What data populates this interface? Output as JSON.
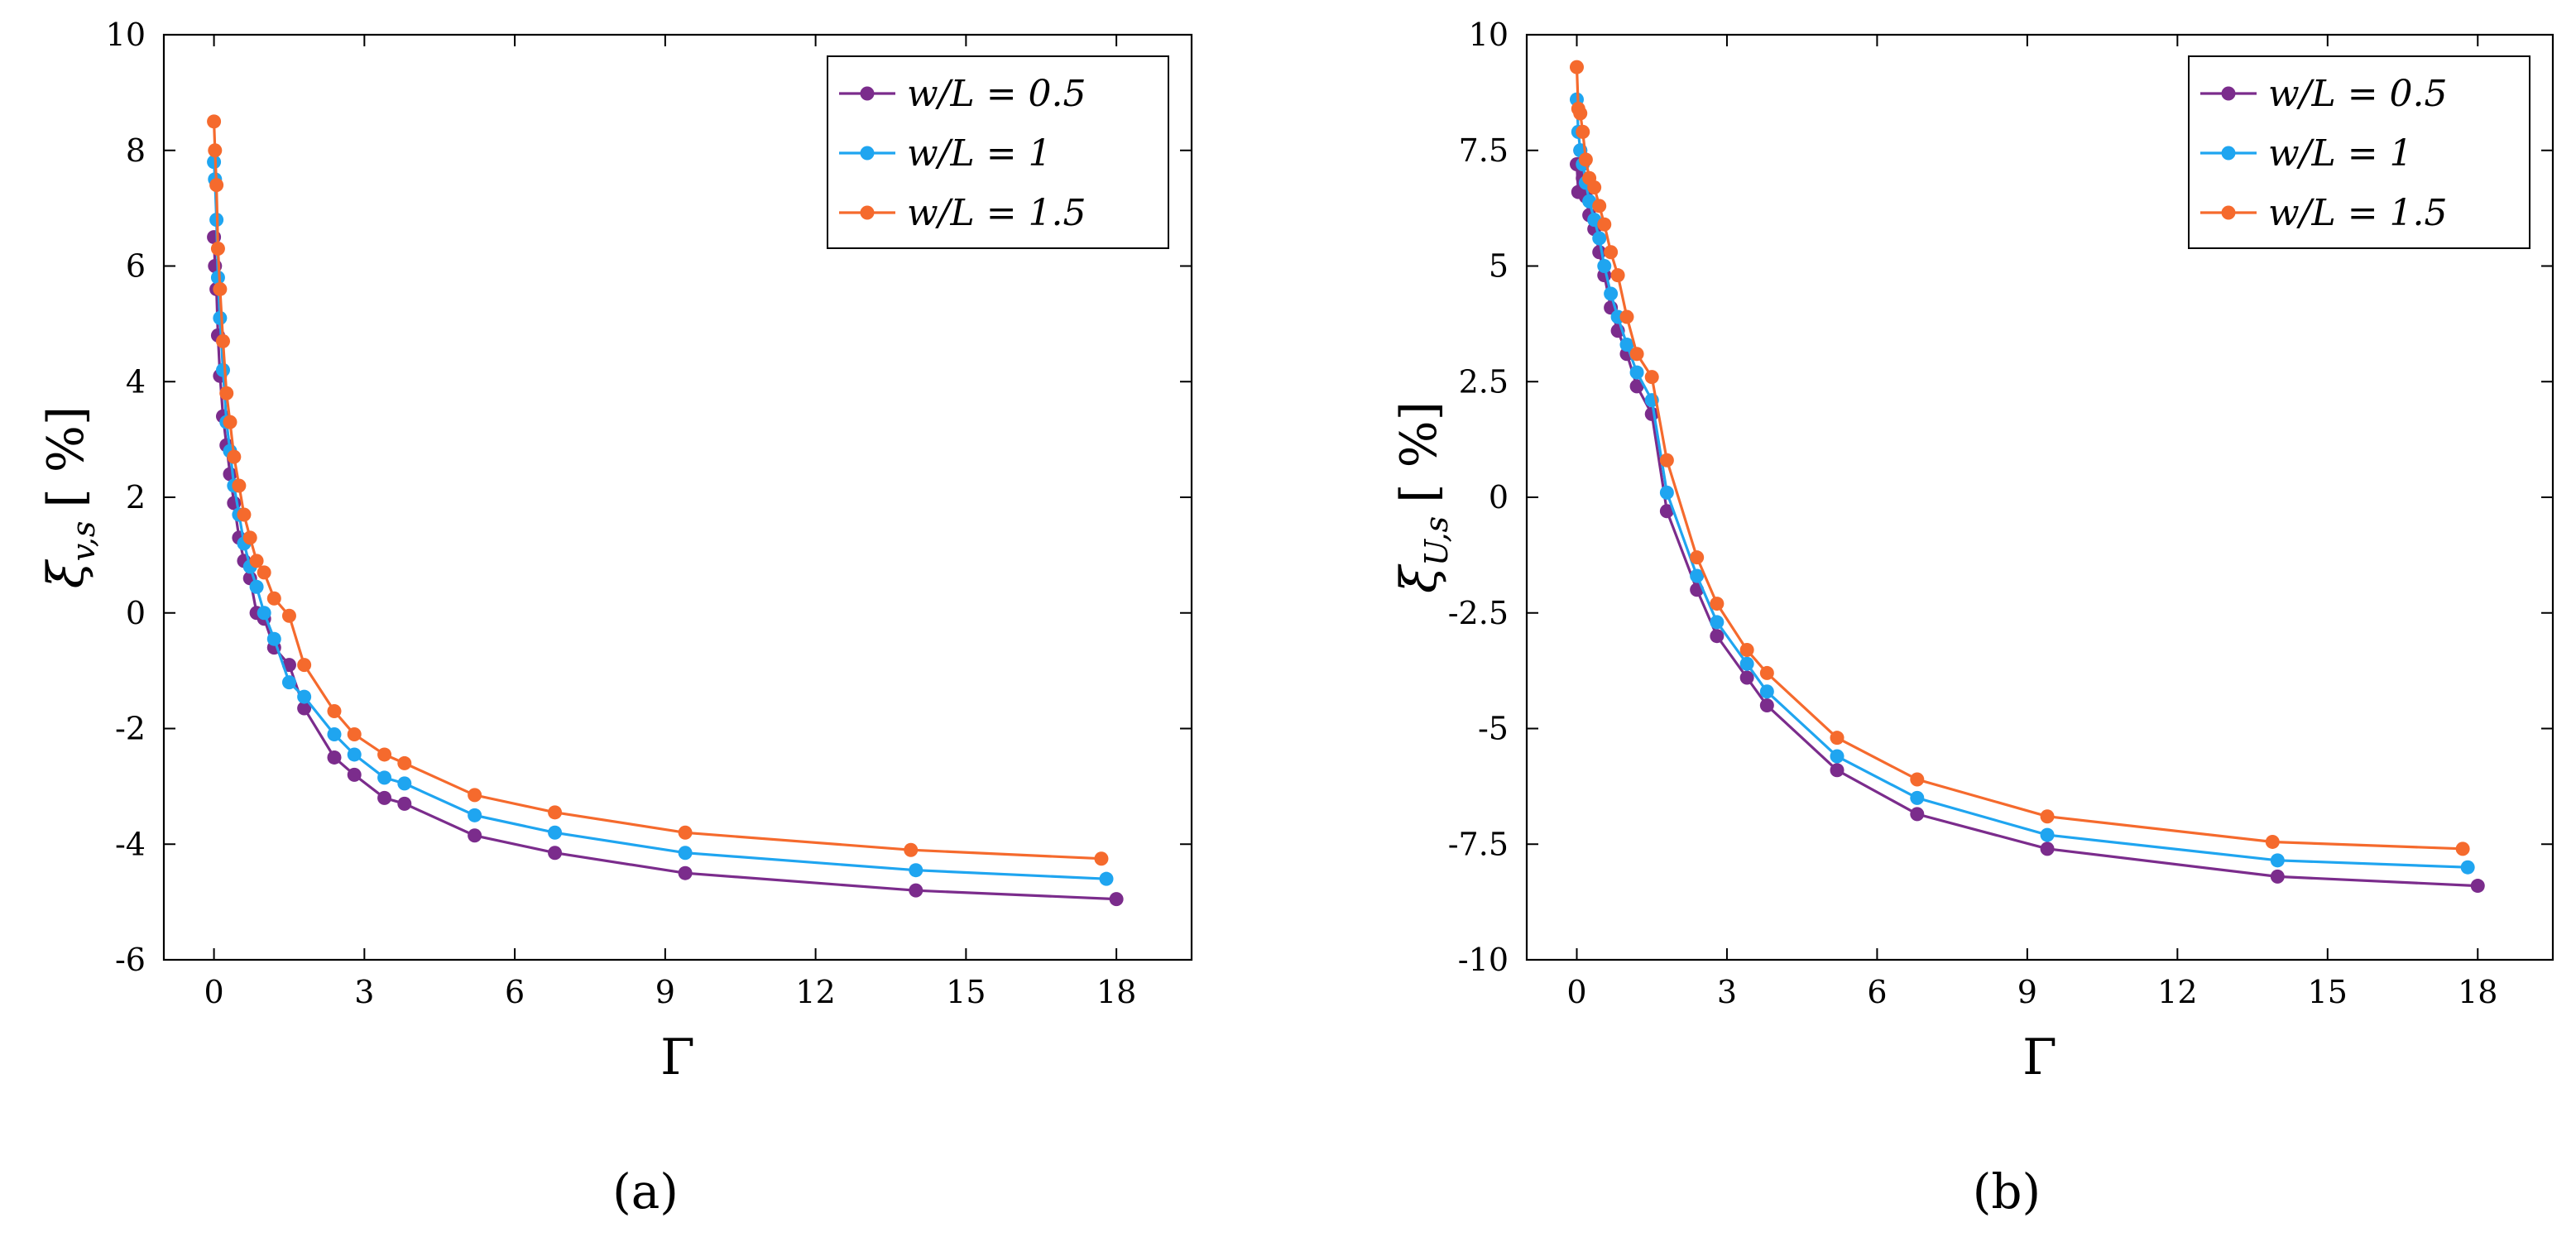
{
  "colors": {
    "w05": "#7B2C8C",
    "w1": "#1FA5F0",
    "w15": "#F56A2D",
    "axis": "#000000"
  },
  "chart_data": [
    {
      "type": "line",
      "panel_label": "(a)",
      "xlabel": "Γ",
      "ylabel_main": "ξ",
      "ylabel_sub": "v,s",
      "ylabel_unit": "[ %]",
      "xlim": [
        -1,
        19.5
      ],
      "ylim": [
        -6,
        10
      ],
      "xticks": [
        0,
        3,
        6,
        9,
        12,
        15,
        18
      ],
      "xtick_labels": [
        "0",
        "3",
        "6",
        "9",
        "12",
        "15",
        "18"
      ],
      "yticks": [
        -6,
        -4,
        -2,
        0,
        2,
        4,
        6,
        8,
        10
      ],
      "ytick_labels": [
        "-6",
        "-4",
        "-2",
        "0",
        "2",
        "4",
        "6",
        "8",
        "10"
      ],
      "legend_position": "top-right",
      "series": [
        {
          "name": "w/L = 0.5",
          "legend_lhs": "w/L",
          "legend_rhs": "= 0.5",
          "color": "#7B2C8C",
          "x": [
            0.0,
            0.02,
            0.05,
            0.08,
            0.12,
            0.18,
            0.25,
            0.32,
            0.4,
            0.5,
            0.6,
            0.72,
            0.85,
            1.0,
            1.2,
            1.5,
            1.8,
            2.4,
            2.8,
            3.4,
            3.8,
            5.2,
            6.8,
            9.4,
            14.0,
            18.0
          ],
          "y": [
            6.5,
            6.0,
            5.6,
            4.8,
            4.1,
            3.4,
            2.9,
            2.4,
            1.9,
            1.3,
            0.9,
            0.6,
            0.0,
            -0.1,
            -0.6,
            -0.9,
            -1.65,
            -2.5,
            -2.8,
            -3.2,
            -3.3,
            -3.85,
            -4.15,
            -4.5,
            -4.8,
            -4.95
          ]
        },
        {
          "name": "w/L = 1",
          "legend_lhs": "w/L",
          "legend_rhs": "= 1",
          "color": "#1FA5F0",
          "x": [
            0.0,
            0.02,
            0.05,
            0.08,
            0.12,
            0.18,
            0.25,
            0.32,
            0.4,
            0.5,
            0.6,
            0.72,
            0.85,
            1.0,
            1.2,
            1.5,
            1.8,
            2.4,
            2.8,
            3.4,
            3.8,
            5.2,
            6.8,
            9.4,
            14.0,
            17.8
          ],
          "y": [
            7.8,
            7.5,
            6.8,
            5.8,
            5.1,
            4.2,
            3.3,
            2.8,
            2.2,
            1.7,
            1.2,
            0.8,
            0.45,
            0.0,
            -0.45,
            -1.2,
            -1.45,
            -2.1,
            -2.45,
            -2.85,
            -2.95,
            -3.5,
            -3.8,
            -4.15,
            -4.45,
            -4.6
          ]
        },
        {
          "name": "w/L = 1.5",
          "legend_lhs": "w/L",
          "legend_rhs": "= 1.5",
          "color": "#F56A2D",
          "x": [
            0.0,
            0.02,
            0.05,
            0.08,
            0.12,
            0.18,
            0.25,
            0.32,
            0.4,
            0.5,
            0.6,
            0.72,
            0.85,
            1.0,
            1.2,
            1.5,
            1.8,
            2.4,
            2.8,
            3.4,
            3.8,
            5.2,
            6.8,
            9.4,
            13.9,
            17.7
          ],
          "y": [
            8.5,
            8.0,
            7.4,
            6.3,
            5.6,
            4.7,
            3.8,
            3.3,
            2.7,
            2.2,
            1.7,
            1.3,
            0.9,
            0.7,
            0.25,
            -0.05,
            -0.9,
            -1.7,
            -2.1,
            -2.45,
            -2.6,
            -3.15,
            -3.45,
            -3.8,
            -4.1,
            -4.25
          ]
        }
      ]
    },
    {
      "type": "line",
      "panel_label": "(b)",
      "xlabel": "Γ",
      "ylabel_main": "ξ",
      "ylabel_sub": "U,s",
      "ylabel_unit": "[ %]",
      "xlim": [
        -1,
        19.5
      ],
      "ylim": [
        -10,
        10
      ],
      "xticks": [
        0,
        3,
        6,
        9,
        12,
        15,
        18
      ],
      "xtick_labels": [
        "0",
        "3",
        "6",
        "9",
        "12",
        "15",
        "18"
      ],
      "yticks": [
        -10,
        -7.5,
        -5,
        -2.5,
        0,
        2.5,
        5,
        7.5,
        10
      ],
      "ytick_labels": [
        "-10",
        "-7.5",
        "-5",
        "-2.5",
        "0",
        "2.5",
        "5",
        "7.5",
        "10"
      ],
      "legend_position": "top-right",
      "series": [
        {
          "name": "w/L = 0.5",
          "legend_lhs": "w/L",
          "legend_rhs": "= 0.5",
          "color": "#7B2C8C",
          "x": [
            0.0,
            0.03,
            0.07,
            0.12,
            0.18,
            0.25,
            0.35,
            0.45,
            0.55,
            0.68,
            0.82,
            1.0,
            1.2,
            1.5,
            1.8,
            2.4,
            2.8,
            3.4,
            3.8,
            5.2,
            6.8,
            9.4,
            14.0,
            18.0
          ],
          "y": [
            7.2,
            6.6,
            7.5,
            6.9,
            6.5,
            6.1,
            5.8,
            5.3,
            4.8,
            4.1,
            3.6,
            3.1,
            2.4,
            1.8,
            -0.3,
            -2.0,
            -3.0,
            -3.9,
            -4.5,
            -5.9,
            -6.85,
            -7.6,
            -8.2,
            -8.4
          ]
        },
        {
          "name": "w/L = 1",
          "legend_lhs": "w/L",
          "legend_rhs": "= 1",
          "color": "#1FA5F0",
          "x": [
            0.0,
            0.03,
            0.07,
            0.12,
            0.18,
            0.25,
            0.35,
            0.45,
            0.55,
            0.68,
            0.82,
            1.0,
            1.2,
            1.5,
            1.8,
            2.4,
            2.8,
            3.4,
            3.8,
            5.2,
            6.8,
            9.4,
            14.0,
            17.8
          ],
          "y": [
            8.6,
            7.9,
            7.5,
            7.2,
            6.8,
            6.4,
            6.0,
            5.6,
            5.0,
            4.4,
            3.9,
            3.3,
            2.7,
            2.1,
            0.1,
            -1.7,
            -2.7,
            -3.6,
            -4.2,
            -5.6,
            -6.5,
            -7.3,
            -7.85,
            -8.0
          ]
        },
        {
          "name": "w/L = 1.5",
          "legend_lhs": "w/L",
          "legend_rhs": "= 1.5",
          "color": "#F56A2D",
          "x": [
            0.0,
            0.03,
            0.07,
            0.12,
            0.18,
            0.25,
            0.35,
            0.45,
            0.55,
            0.68,
            0.82,
            1.0,
            1.2,
            1.5,
            1.8,
            2.4,
            2.8,
            3.4,
            3.8,
            5.2,
            6.8,
            9.4,
            13.9,
            17.7
          ],
          "y": [
            9.3,
            8.4,
            8.3,
            7.9,
            7.3,
            6.9,
            6.7,
            6.3,
            5.9,
            5.3,
            4.8,
            3.9,
            3.1,
            2.6,
            0.8,
            -1.3,
            -2.3,
            -3.3,
            -3.8,
            -5.2,
            -6.1,
            -6.9,
            -7.45,
            -7.6
          ]
        }
      ]
    }
  ]
}
